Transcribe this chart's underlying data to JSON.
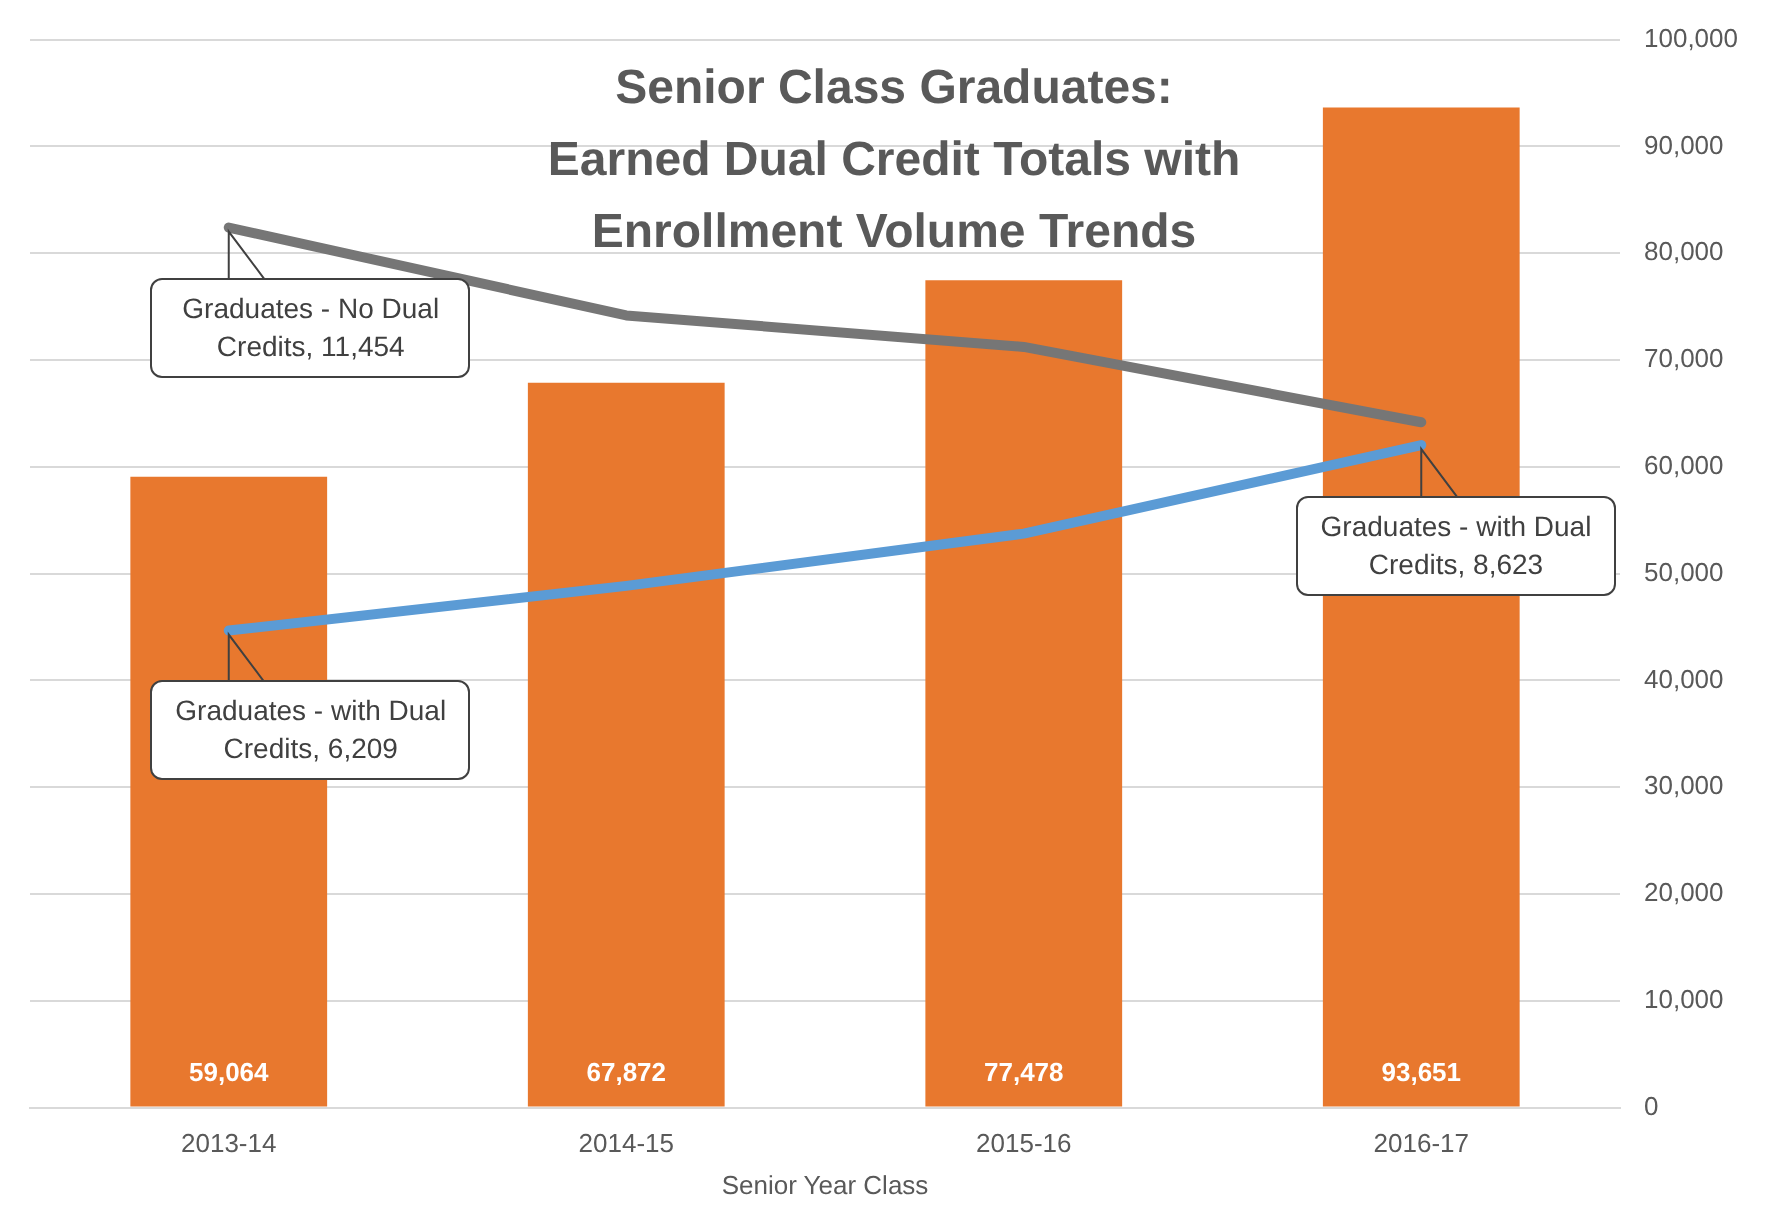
{
  "chart_data": {
    "type": "bar",
    "title": "Senior Class Graduates: Earned Dual Credit Totals with Enrollment Volume Trends",
    "xlabel": "Senior Year Class",
    "categories": [
      "2013-14",
      "2014-15",
      "2015-16",
      "2016-17"
    ],
    "series": [
      {
        "color": "#e8782e",
        "values": [
          59064,
          67872,
          77478,
          93651
        ],
        "value_labels": [
          "59,064",
          "67,872",
          "77,478",
          "93,651"
        ]
      },
      {
        "type": "line",
        "axis": "y2",
        "color": "#767676",
        "values": [
          11454,
          10310,
          9900,
          8920
        ],
        "value_labels": [
          "Graduates - No Dual Credits, 11,454",
          null,
          null,
          null
        ]
      },
      {
        "type": "line",
        "axis": "y2",
        "color": "#5b9bd5",
        "values": [
          6209,
          6790,
          7470,
          8623
        ],
        "value_labels": [
          "Graduates - with Dual Credits, 6,209",
          null,
          null,
          "Graduates - with Dual Credits, 8,623"
        ]
      }
    ],
    "ylim": [
      0,
      100000
    ],
    "yticks": [
      {
        "value": 0,
        "label": "0"
      },
      {
        "value": 10000,
        "label": "10,000"
      },
      {
        "value": 20000,
        "label": "20,000"
      },
      {
        "value": 30000,
        "label": "30,000"
      },
      {
        "value": 40000,
        "label": "40,000"
      },
      {
        "value": 50000,
        "label": "50,000"
      },
      {
        "value": 60000,
        "label": "60,000"
      },
      {
        "value": 70000,
        "label": "70,000"
      },
      {
        "value": 80000,
        "label": "80,000"
      },
      {
        "value": 90000,
        "label": "90,000"
      },
      {
        "value": 100000,
        "label": "100,000"
      }
    ],
    "y2lim": [
      0,
      13900
    ],
    "grid": "y",
    "legend": false,
    "marker": "none",
    "line_style": "solid"
  }
}
